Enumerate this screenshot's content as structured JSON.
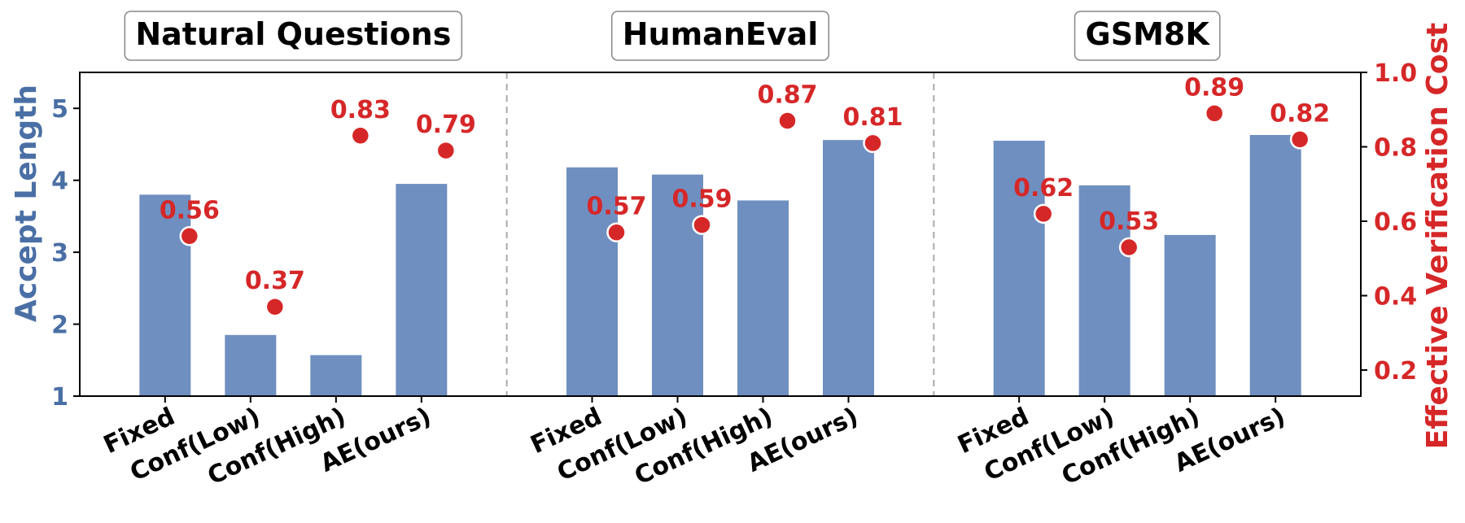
{
  "chart_data": {
    "type": "bar",
    "panels": [
      {
        "title": "Natural Questions",
        "categories": [
          "Fixed",
          "Conf(Low)",
          "Conf(High)",
          "AE(ours)"
        ],
        "accept_length": [
          3.8,
          1.85,
          1.57,
          3.95
        ],
        "verification_cost": [
          0.56,
          0.37,
          0.83,
          0.79
        ],
        "cost_labels": [
          "0.56",
          "0.37",
          "0.83",
          "0.79"
        ]
      },
      {
        "title": "HumanEval",
        "categories": [
          "Fixed",
          "Conf(Low)",
          "Conf(High)",
          "AE(ours)"
        ],
        "accept_length": [
          4.18,
          4.08,
          3.72,
          4.56
        ],
        "verification_cost": [
          0.57,
          0.59,
          0.87,
          0.81
        ],
        "cost_labels": [
          "0.57",
          "0.59",
          "0.87",
          "0.81"
        ]
      },
      {
        "title": "GSM8K",
        "categories": [
          "Fixed",
          "Conf(Low)",
          "Conf(High)",
          "AE(ours)"
        ],
        "accept_length": [
          4.55,
          3.93,
          3.24,
          4.63
        ],
        "verification_cost": [
          0.62,
          0.53,
          0.89,
          0.82
        ],
        "cost_labels": [
          "0.62",
          "0.53",
          "0.89",
          "0.82"
        ]
      }
    ],
    "left_axis": {
      "label": "Accept Length",
      "ylim": [
        1,
        5.5
      ],
      "ticks": [
        "1",
        "2",
        "3",
        "4",
        "5"
      ],
      "color": "#4a6fa5"
    },
    "right_axis": {
      "label": "Effective Verification Cost",
      "ylim": [
        0.13,
        1.0
      ],
      "ticks": [
        "0.2",
        "0.4",
        "0.6",
        "0.8",
        "1.0"
      ],
      "color": "#d62728"
    },
    "bar_color": "#6f8fc0",
    "point_color": "#d62728",
    "grid": false
  }
}
